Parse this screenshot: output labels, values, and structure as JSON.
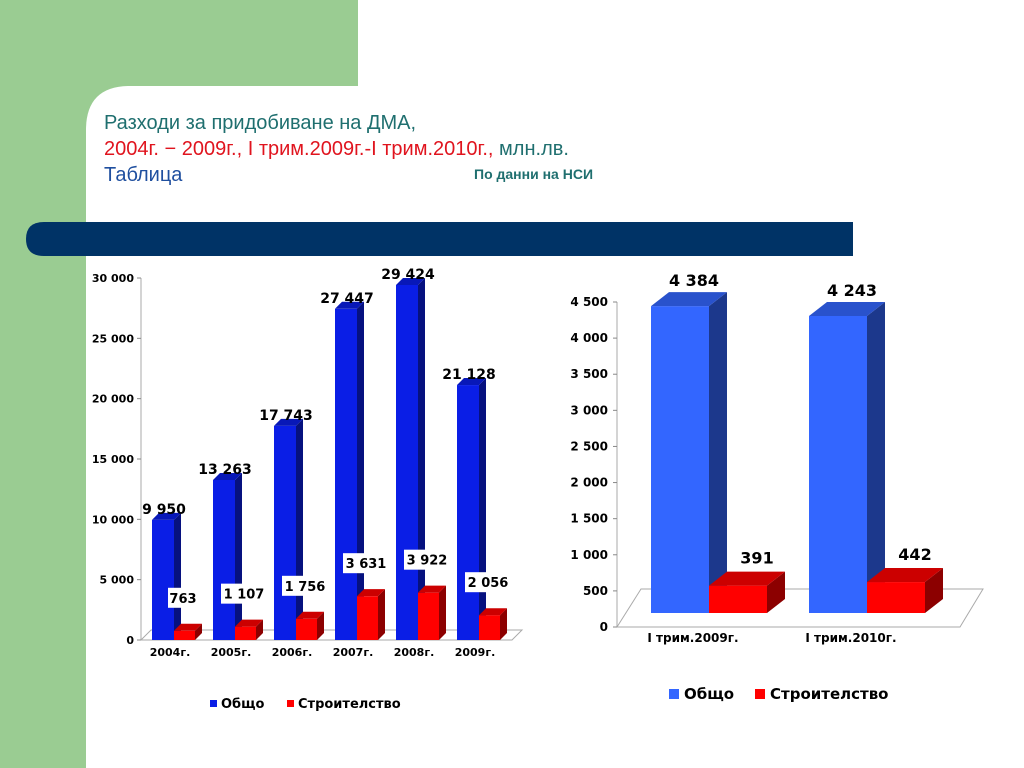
{
  "slide": {
    "title_line1": "Разходи за придобиване на ДМА,",
    "title_line2_red": "2004г. − 2009г., I трим.2009г.-I трим.2010г.,",
    "title_line2_unit": " млн.лв.",
    "title_line3": "Таблица",
    "source": "По данни на НСИ"
  },
  "colors": {
    "green_panel": "#9acc92",
    "navy_bar": "#003366",
    "series1_annual": "#0a1ee6",
    "series1_quarterly": "#3366ff",
    "series2": "#ff0000"
  },
  "chart_data": [
    {
      "type": "bar",
      "categories": [
        "2004г.",
        "2005г.",
        "2006г.",
        "2007г.",
        "2008г.",
        "2009г."
      ],
      "series": [
        {
          "name": "Общо",
          "values": [
            9950,
            13263,
            17743,
            27447,
            29424,
            21128
          ],
          "labels": [
            "9 950",
            "13 263",
            "17 743",
            "27 447",
            "29 424",
            "21 128"
          ]
        },
        {
          "name": "Строителство",
          "values": [
            763,
            1107,
            1756,
            3631,
            3922,
            2056
          ],
          "labels": [
            "763",
            "1 107",
            "1 756",
            "3 631",
            "3 922",
            "2 056"
          ]
        }
      ],
      "yticks": [
        "0",
        "5 000",
        "10 000",
        "15 000",
        "20 000",
        "25 000",
        "30 000"
      ],
      "ylim": [
        0,
        30000
      ],
      "legend": "bottom"
    },
    {
      "type": "bar",
      "categories": [
        "I трим.2009г.",
        "I трим.2010г."
      ],
      "series": [
        {
          "name": "Общо",
          "values": [
            4384,
            4243
          ],
          "labels": [
            "4 384",
            "4 243"
          ]
        },
        {
          "name": "Строителство",
          "values": [
            391,
            442
          ],
          "labels": [
            "391",
            "442"
          ]
        }
      ],
      "yticks": [
        "0",
        "500",
        "1 000",
        "1 500",
        "2 000",
        "2 500",
        "3 000",
        "3 500",
        "4 000",
        "4 500"
      ],
      "ylim": [
        0,
        4500
      ],
      "legend": "bottom"
    }
  ]
}
